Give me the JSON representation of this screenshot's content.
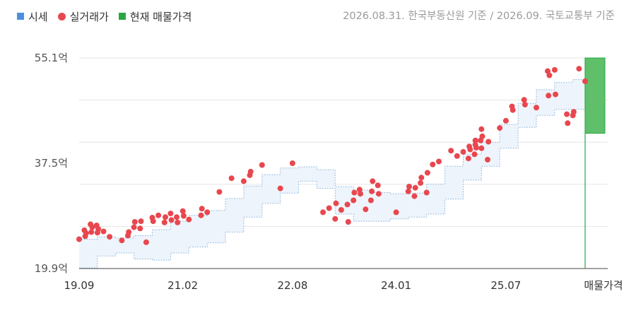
{
  "legend": [
    {
      "label": "시세",
      "color": "#4a90e2",
      "shape": "square"
    },
    {
      "label": "실거래가",
      "color": "#e8474f",
      "shape": "dot"
    },
    {
      "label": "현재 매물가격",
      "color": "#27a844",
      "shape": "square"
    }
  ],
  "source_text": "2026.08.31. 한국부동산원 기준 / 2026.09. 국토교통부 기준",
  "chart_data": {
    "type": "scatter",
    "title": "",
    "xlabel": "",
    "ylabel": "",
    "unit": "억",
    "x_range": [
      "2019-09",
      "2026-08"
    ],
    "ylim": [
      19.9,
      55.1
    ],
    "y_ticks": [
      {
        "value": 55.1,
        "label": "55.1억"
      },
      {
        "value": 37.5,
        "label": "37.5억"
      },
      {
        "value": 19.9,
        "label": "19.9억"
      }
    ],
    "x_ticks": [
      {
        "date": "2019-09",
        "label": "19.09"
      },
      {
        "date": "2021-02",
        "label": "21.02"
      },
      {
        "date": "2022-08",
        "label": "22.08"
      },
      {
        "date": "2024-01",
        "label": "24.01"
      },
      {
        "date": "2025-07",
        "label": "25.07"
      }
    ],
    "listing_label": "매물가격",
    "grid": true,
    "colors": {
      "band_fill": "#eef4fb",
      "band_stroke": "#7fb0dd",
      "trade": "#e8474f",
      "listing": "#5fbf6a",
      "listing_stroke": "#27a844",
      "grid": "#e6e6e6"
    },
    "series": [
      {
        "name": "시세",
        "x": [
          "2019-09",
          "2019-12",
          "2020-03",
          "2020-06",
          "2020-09",
          "2020-12",
          "2021-03",
          "2021-06",
          "2021-09",
          "2021-12",
          "2022-03",
          "2022-06",
          "2022-09",
          "2022-12",
          "2023-03",
          "2023-06",
          "2023-09",
          "2023-12",
          "2024-03",
          "2024-06",
          "2024-09",
          "2024-12",
          "2025-03",
          "2025-06",
          "2025-09",
          "2025-12",
          "2026-03",
          "2026-06",
          "2026-08"
        ],
        "upper": [
          24.8,
          25.2,
          25.0,
          25.4,
          26.4,
          27.8,
          28.8,
          29.6,
          31.6,
          33.7,
          35.6,
          36.7,
          36.9,
          36.4,
          33.6,
          33.0,
          32.6,
          32.4,
          32.5,
          34.0,
          37.0,
          39.0,
          41.0,
          44.0,
          47.5,
          49.8,
          51.0,
          51.5,
          50.5
        ],
        "lower": [
          20.0,
          22.0,
          22.5,
          21.5,
          21.3,
          22.5,
          23.5,
          24.2,
          26.0,
          28.5,
          30.8,
          32.5,
          34.5,
          33.3,
          29.0,
          27.8,
          27.8,
          28.2,
          28.5,
          29.0,
          31.5,
          34.7,
          37.0,
          40.0,
          43.5,
          45.5,
          46.5,
          46.5,
          45.0
        ]
      },
      {
        "name": "실거래가",
        "x": [
          "2019-09",
          "2019-10",
          "2019-10",
          "2019-10",
          "2019-11",
          "2019-11",
          "2019-11",
          "2019-12",
          "2019-12",
          "2019-12",
          "2020-01",
          "2020-02",
          "2020-04",
          "2020-05",
          "2020-05",
          "2020-06",
          "2020-06",
          "2020-07",
          "2020-07",
          "2020-08",
          "2020-09",
          "2020-09",
          "2020-10",
          "2020-11",
          "2020-11",
          "2020-12",
          "2020-12",
          "2021-01",
          "2021-01",
          "2021-02",
          "2021-02",
          "2021-03",
          "2021-05",
          "2021-05",
          "2021-06",
          "2021-08",
          "2021-10",
          "2021-12",
          "2022-01",
          "2022-01",
          "2022-03",
          "2022-06",
          "2022-08",
          "2023-01",
          "2023-02",
          "2023-03",
          "2023-03",
          "2023-04",
          "2023-05",
          "2023-05",
          "2023-06",
          "2023-06",
          "2023-07",
          "2023-07",
          "2023-08",
          "2023-09",
          "2023-09",
          "2023-09",
          "2023-10",
          "2023-10",
          "2024-01",
          "2024-03",
          "2024-03",
          "2024-04",
          "2024-04",
          "2024-05",
          "2024-05",
          "2024-06",
          "2024-06",
          "2024-07",
          "2024-08",
          "2024-10",
          "2024-11",
          "2024-12",
          "2025-01",
          "2025-01",
          "2025-01",
          "2025-02",
          "2025-02",
          "2025-02",
          "2025-02",
          "2025-03",
          "2025-03",
          "2025-03",
          "2025-03",
          "2025-04",
          "2025-04",
          "2025-06",
          "2025-07",
          "2025-08",
          "2025-08",
          "2025-10",
          "2025-10",
          "2025-12",
          "2026-02",
          "2026-02",
          "2026-02",
          "2026-03",
          "2026-03",
          "2026-05",
          "2026-05",
          "2026-06",
          "2026-06",
          "2026-07",
          "2026-08"
        ],
        "y": [
          24.8,
          25.3,
          25.8,
          26.3,
          26.0,
          26.8,
          27.3,
          25.9,
          26.5,
          27.1,
          26.1,
          25.2,
          24.6,
          25.4,
          26.0,
          26.8,
          27.7,
          26.6,
          27.8,
          24.3,
          28.4,
          27.8,
          28.8,
          27.6,
          28.5,
          29.1,
          28.0,
          28.5,
          27.6,
          29.5,
          28.7,
          28.1,
          28.8,
          29.9,
          29.3,
          32.7,
          35.0,
          34.5,
          35.5,
          36.1,
          37.2,
          33.3,
          37.5,
          29.3,
          30.0,
          28.2,
          30.8,
          29.7,
          30.6,
          27.7,
          31.3,
          32.6,
          33.1,
          32.4,
          29.8,
          32.8,
          34.5,
          31.3,
          33.8,
          32.4,
          29.3,
          32.8,
          33.6,
          32.0,
          33.4,
          34.2,
          35.1,
          32.6,
          35.9,
          37.3,
          37.8,
          39.6,
          38.7,
          39.4,
          40.3,
          39.8,
          38.3,
          41.3,
          40.1,
          39.0,
          40.6,
          40.0,
          42.0,
          41.3,
          43.2,
          38.1,
          41.1,
          43.4,
          44.6,
          47.0,
          46.4,
          48.1,
          47.3,
          46.8,
          48.8,
          52.2,
          52.9,
          53.1,
          49.0,
          45.7,
          44.2,
          45.5,
          46.1,
          53.3,
          51.2
        ]
      }
    ],
    "listing": {
      "x": "2026-08",
      "low": 42.5,
      "high": 55.1
    }
  }
}
